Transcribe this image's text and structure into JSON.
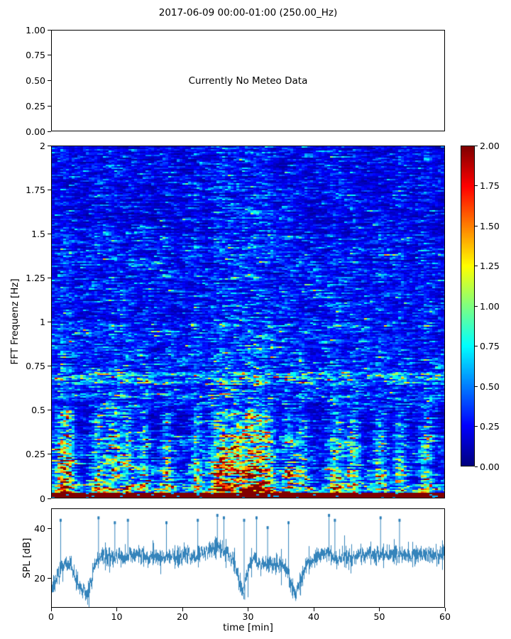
{
  "figure": {
    "title": "2017-06-09 00:00-01:00 (250.00_Hz)",
    "background": "#ffffff",
    "spine_color": "#000000"
  },
  "chart_data": [
    {
      "type": "text-panel",
      "message": "Currently No Meteo Data",
      "ylim": [
        0,
        1
      ],
      "yticks": [
        0,
        0.25,
        0.5,
        0.75,
        1
      ],
      "ytick_labels": [
        "0.00",
        "0.25",
        "0.50",
        "0.75",
        "1.00"
      ]
    },
    {
      "type": "heatmap",
      "ylabel": "FFT Frequenz [Hz]",
      "xlim": [
        0,
        60
      ],
      "ylim": [
        0,
        2
      ],
      "yticks": [
        0,
        0.25,
        0.5,
        0.75,
        1,
        1.25,
        1.5,
        1.75,
        2
      ],
      "ytick_labels": [
        "0",
        "0.25",
        "0.5",
        "0.75",
        "1",
        "1.25",
        "1.5",
        "1.75",
        "2"
      ],
      "colormap": "jet",
      "value_range": [
        0,
        2
      ],
      "colorbar_ticks": [
        0,
        0.25,
        0.5,
        0.75,
        1,
        1.25,
        1.5,
        1.75,
        2
      ],
      "colorbar_tick_labels": [
        "0.00",
        "0.25",
        "0.50",
        "0.75",
        "1.00",
        "1.25",
        "1.50",
        "1.75",
        "2.00"
      ],
      "profile": {
        "seed": 42,
        "bands": [
          {
            "f_max": 0.035,
            "mean": 2.6
          },
          {
            "f_max": 0.08,
            "mean": 1.1
          },
          {
            "f_max": 0.18,
            "mean": 0.8
          },
          {
            "f_max": 0.32,
            "mean": 0.6
          },
          {
            "f_max": 0.5,
            "mean": 0.4
          },
          {
            "f_max": 1.0,
            "mean": 0.3
          },
          {
            "f_max": 1.5,
            "mean": 0.26
          },
          {
            "f_max": 2.1,
            "mean": 0.22
          }
        ],
        "enhanced_bands": [
          {
            "f": 0.68,
            "w": 0.035,
            "boost": 1.7
          },
          {
            "f": 0.345,
            "w": 0.02,
            "boost": 1.6
          },
          {
            "f": 0.58,
            "w": 0.015,
            "boost": 1.3
          }
        ],
        "burst_times": [
          1.5,
          2.5,
          7,
          9.5,
          11.5,
          14,
          17.5,
          22,
          25,
          26,
          28,
          30,
          31.5,
          33,
          36,
          38,
          43,
          46,
          50,
          53,
          57
        ],
        "hot_regions": [
          {
            "t": 30,
            "w": 3.5,
            "boost": 0.9
          },
          {
            "t": 26,
            "w": 1.5,
            "boost": 0.6
          },
          {
            "t": 9,
            "w": 2.0,
            "boost": 0.4
          },
          {
            "t": 44,
            "w": 1.5,
            "boost": 0.4
          },
          {
            "t": 2,
            "w": 1.5,
            "boost": 0.5
          }
        ]
      }
    },
    {
      "type": "line",
      "ylabel": "SPL [dB]",
      "xlabel": "time [min]",
      "xlim": [
        0,
        60
      ],
      "ylim": [
        8,
        48
      ],
      "yticks": [
        20,
        40
      ],
      "ytick_labels": [
        "20",
        "40"
      ],
      "xticks": [
        0,
        10,
        20,
        30,
        40,
        50,
        60
      ],
      "xtick_labels": [
        "0",
        "10",
        "20",
        "30",
        "40",
        "50",
        "60"
      ],
      "color": "#1f77b4",
      "seed": 7,
      "noise_db": 2.2,
      "baseline": [
        [
          0,
          16
        ],
        [
          0.5,
          18
        ],
        [
          1,
          21
        ],
        [
          1.5,
          24
        ],
        [
          2,
          25
        ],
        [
          3,
          24
        ],
        [
          4,
          17
        ],
        [
          5,
          14
        ],
        [
          5.5,
          13
        ],
        [
          6,
          18
        ],
        [
          6.5,
          25
        ],
        [
          7,
          28
        ],
        [
          8,
          29
        ],
        [
          9,
          28
        ],
        [
          10,
          29
        ],
        [
          11,
          28
        ],
        [
          12,
          29
        ],
        [
          13,
          30
        ],
        [
          14,
          29
        ],
        [
          15,
          28
        ],
        [
          16,
          29
        ],
        [
          17,
          28
        ],
        [
          18,
          29
        ],
        [
          19,
          28
        ],
        [
          20,
          29
        ],
        [
          21,
          30
        ],
        [
          22,
          29
        ],
        [
          23,
          30
        ],
        [
          24,
          31
        ],
        [
          25,
          32
        ],
        [
          25.5,
          33
        ],
        [
          26,
          31
        ],
        [
          27,
          30
        ],
        [
          28,
          26
        ],
        [
          28.7,
          18
        ],
        [
          29.3,
          14
        ],
        [
          29.8,
          22
        ],
        [
          30.3,
          26
        ],
        [
          31,
          28
        ],
        [
          31.5,
          26
        ],
        [
          32,
          25
        ],
        [
          33,
          26
        ],
        [
          34,
          25
        ],
        [
          35,
          26
        ],
        [
          36,
          23
        ],
        [
          36.6,
          18
        ],
        [
          37.2,
          14
        ],
        [
          37.8,
          17
        ],
        [
          38.5,
          22
        ],
        [
          39,
          26
        ],
        [
          40,
          28
        ],
        [
          41,
          29
        ],
        [
          42,
          30
        ],
        [
          43,
          29
        ],
        [
          44,
          28
        ],
        [
          45,
          29
        ],
        [
          46,
          28
        ],
        [
          47,
          29
        ],
        [
          48,
          30
        ],
        [
          49,
          29
        ],
        [
          50,
          30
        ],
        [
          51,
          29
        ],
        [
          52,
          30
        ],
        [
          53,
          29
        ],
        [
          54,
          30
        ],
        [
          55,
          29
        ],
        [
          56,
          30
        ],
        [
          57,
          29
        ],
        [
          58,
          30
        ],
        [
          59,
          29
        ],
        [
          60,
          30
        ]
      ],
      "spikes": [
        [
          1.3,
          44
        ],
        [
          7.1,
          45
        ],
        [
          9.6,
          43
        ],
        [
          11.6,
          44
        ],
        [
          17.5,
          43
        ],
        [
          22.3,
          44
        ],
        [
          25.3,
          46
        ],
        [
          26.3,
          45
        ],
        [
          29.4,
          44
        ],
        [
          31.3,
          45
        ],
        [
          33.0,
          41
        ],
        [
          36.2,
          43
        ],
        [
          42.4,
          46
        ],
        [
          43.3,
          44
        ],
        [
          50.3,
          45
        ],
        [
          53.2,
          44
        ]
      ],
      "down_spikes": [
        [
          5.4,
          11.5
        ],
        [
          29.5,
          11
        ],
        [
          30.0,
          12
        ],
        [
          37.3,
          10.5
        ],
        [
          38.0,
          13
        ]
      ]
    }
  ]
}
